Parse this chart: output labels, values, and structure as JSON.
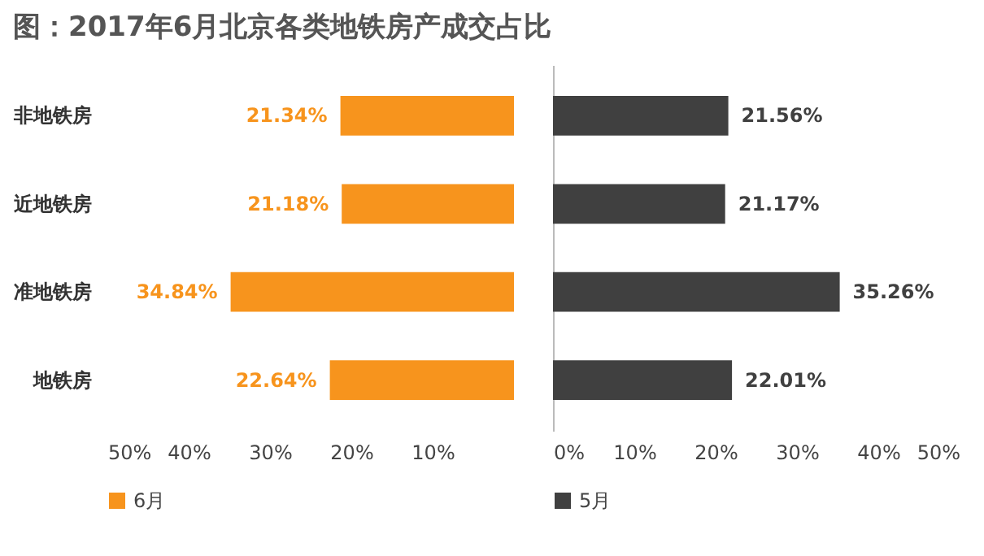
{
  "chart_data": [
    {
      "type": "bar",
      "orientation": "horizontal",
      "title": "图：2017年6月北京各类地铁房产成交占比",
      "categories": [
        "非地铁房",
        "近地铁房",
        "准地铁房",
        "地铁房"
      ],
      "series": [
        {
          "name": "6月",
          "color": "#f7941d",
          "values": [
            21.34,
            21.18,
            34.84,
            22.64
          ],
          "value_labels": [
            "21.34%",
            "21.18%",
            "34.84%",
            "22.64%"
          ]
        }
      ],
      "xlim": [
        50,
        0
      ],
      "xticks": [
        {
          "value": 50,
          "label": "50%"
        },
        {
          "value": 40,
          "label": "40%"
        },
        {
          "value": 30,
          "label": "30%"
        },
        {
          "value": 20,
          "label": "20%"
        },
        {
          "value": 10,
          "label": "10%"
        }
      ],
      "legend": "bottom"
    },
    {
      "type": "bar",
      "orientation": "horizontal",
      "categories": [
        null,
        null,
        null,
        null
      ],
      "series": [
        {
          "name": "5月",
          "color": "#404040",
          "values": [
            21.56,
            21.17,
            35.26,
            22.01
          ],
          "value_labels": [
            "21.56%",
            "21.17%",
            "35.26%",
            "22.01%"
          ]
        }
      ],
      "xlim": [
        0,
        50
      ],
      "xticks": [
        {
          "value": 0,
          "label": "0%"
        },
        {
          "value": 10,
          "label": "10%"
        },
        {
          "value": 20,
          "label": "20%"
        },
        {
          "value": 30,
          "label": "30%"
        },
        {
          "value": 40,
          "label": "40%"
        },
        {
          "value": 50,
          "label": "50%"
        }
      ],
      "tick_labels": "x",
      "legend": "bottom"
    }
  ]
}
